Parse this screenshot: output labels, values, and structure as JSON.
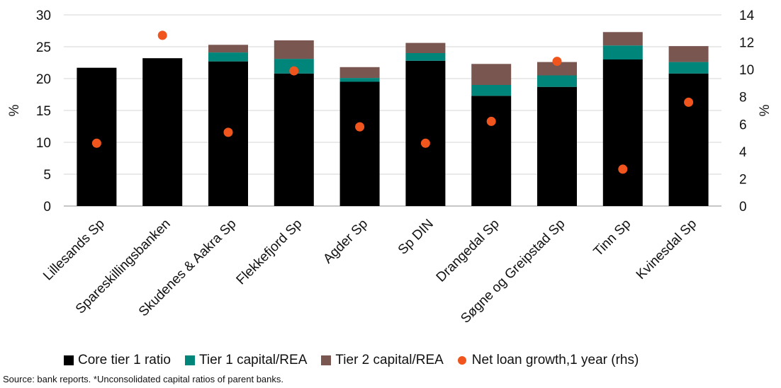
{
  "chart_data": {
    "type": "bar",
    "stacked": true,
    "categories": [
      "Lillesands Sp",
      "Spareskillingsbanken",
      "Skudenes & Aakra Sp",
      "Flekkefjord Sp",
      "Agder Sp",
      "Sp DIN",
      "Drangedal Sp",
      "Søgne og Greipstad Sp",
      "Tinn Sp",
      "Kvinesdal Sp"
    ],
    "series": [
      {
        "name": "Core tier 1 ratio",
        "color": "#000000",
        "axis": "left",
        "kind": "bar",
        "values": [
          21.7,
          23.2,
          22.7,
          20.8,
          19.5,
          22.8,
          17.3,
          18.7,
          23.0,
          20.8
        ]
      },
      {
        "name": "Tier 1 capital/REA",
        "color": "#00857A",
        "axis": "left",
        "kind": "bar",
        "values": [
          0,
          0,
          1.4,
          2.3,
          0.6,
          1.2,
          1.7,
          1.8,
          2.2,
          1.8
        ]
      },
      {
        "name": "Tier 2 capital/REA",
        "color": "#7A5650",
        "axis": "left",
        "kind": "bar",
        "values": [
          0,
          0,
          1.2,
          2.9,
          1.7,
          1.6,
          3.3,
          2.1,
          2.1,
          2.5
        ]
      },
      {
        "name": "Net loan growth,1 year (rhs)",
        "color": "#F0551E",
        "axis": "right",
        "kind": "scatter",
        "values": [
          4.6,
          12.5,
          5.4,
          9.9,
          5.8,
          4.6,
          6.2,
          10.6,
          2.7,
          7.6
        ]
      }
    ],
    "ylabel": "%",
    "y2label": "%",
    "ylim": [
      0,
      30
    ],
    "yticks": [
      0,
      5,
      10,
      15,
      20,
      25,
      30
    ],
    "y2lim": [
      0,
      14
    ],
    "y2ticks": [
      0,
      2,
      4,
      6,
      8,
      10,
      12,
      14
    ],
    "grid": true,
    "legend_position": "bottom"
  },
  "legend": {
    "items": [
      {
        "label": "Core tier 1 ratio",
        "color": "#000000",
        "shape": "square"
      },
      {
        "label": "Tier 1 capital/REA",
        "color": "#00857A",
        "shape": "square"
      },
      {
        "label": "Tier 2 capital/REA",
        "color": "#7A5650",
        "shape": "square"
      },
      {
        "label": "Net loan growth,1 year (rhs)",
        "color": "#F0551E",
        "shape": "circle"
      }
    ]
  },
  "source": "Source: bank reports. *Unconsolidated capital ratios of parent banks."
}
